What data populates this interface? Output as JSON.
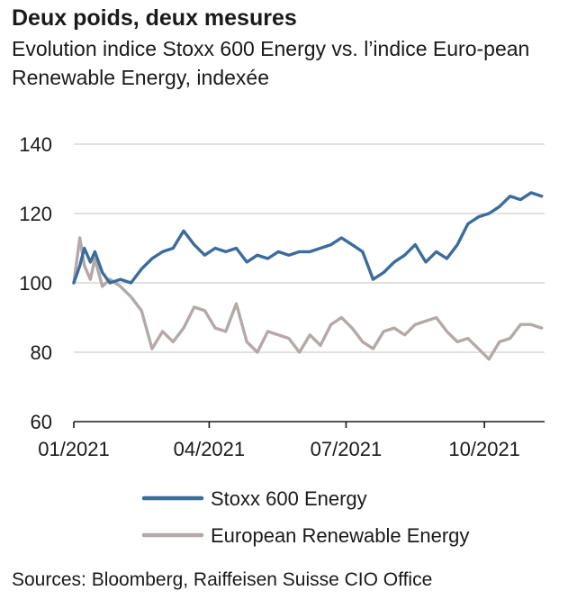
{
  "title": "Deux poids, deux mesures",
  "subtitle": "Evolution indice Stoxx 600 Energy vs. l’indice Euro-pean Renewable Energy, indexée",
  "source": "Sources: Bloomberg, Raiffeisen Suisse CIO Office",
  "colors": {
    "series_energy": "#3c6c9c",
    "series_renewable": "#b3a9a8",
    "grid": "#cfcfcf",
    "axis": "#1a1a1a"
  },
  "chart_data": {
    "type": "line",
    "title": "Deux poids, deux mesures",
    "subtitle": "Evolution indice Stoxx 600 Energy vs. l’indice European Renewable Energy, indexée",
    "xlabel": "",
    "ylabel": "",
    "ylim": [
      60,
      140
    ],
    "yticks": [
      60,
      80,
      100,
      120,
      140
    ],
    "xlim": [
      "2021-01-01",
      "2021-11-10"
    ],
    "xticks": [
      {
        "label": "01/2021",
        "date": "2021-01-01"
      },
      {
        "label": "04/2021",
        "date": "2021-04-01"
      },
      {
        "label": "07/2021",
        "date": "2021-07-01"
      },
      {
        "label": "10/2021",
        "date": "2021-10-01"
      }
    ],
    "grid": true,
    "legend_position": "bottom",
    "series": [
      {
        "name": "Stoxx 600 Energy",
        "color": "#3c6c9c",
        "x": [
          "2021-01-01",
          "2021-01-05",
          "2021-01-08",
          "2021-01-12",
          "2021-01-15",
          "2021-01-20",
          "2021-01-25",
          "2021-02-01",
          "2021-02-08",
          "2021-02-15",
          "2021-02-22",
          "2021-03-01",
          "2021-03-08",
          "2021-03-15",
          "2021-03-22",
          "2021-03-29",
          "2021-04-05",
          "2021-04-12",
          "2021-04-19",
          "2021-04-26",
          "2021-05-03",
          "2021-05-10",
          "2021-05-17",
          "2021-05-24",
          "2021-05-31",
          "2021-06-07",
          "2021-06-14",
          "2021-06-21",
          "2021-06-28",
          "2021-07-05",
          "2021-07-12",
          "2021-07-19",
          "2021-07-26",
          "2021-08-02",
          "2021-08-09",
          "2021-08-16",
          "2021-08-23",
          "2021-08-30",
          "2021-09-06",
          "2021-09-13",
          "2021-09-20",
          "2021-09-27",
          "2021-10-04",
          "2021-10-11",
          "2021-10-18",
          "2021-10-25",
          "2021-11-01",
          "2021-11-08"
        ],
        "values": [
          100,
          105,
          110,
          106,
          109,
          103,
          100,
          101,
          100,
          104,
          107,
          109,
          110,
          115,
          111,
          108,
          110,
          109,
          110,
          106,
          108,
          107,
          109,
          108,
          109,
          109,
          110,
          111,
          113,
          111,
          109,
          101,
          103,
          106,
          108,
          111,
          106,
          109,
          107,
          111,
          117,
          119,
          120,
          122,
          125,
          124,
          126,
          125
        ]
      },
      {
        "name": "European Renewable Energy",
        "color": "#b3a9a8",
        "x": [
          "2021-01-01",
          "2021-01-05",
          "2021-01-08",
          "2021-01-12",
          "2021-01-15",
          "2021-01-20",
          "2021-01-25",
          "2021-02-01",
          "2021-02-08",
          "2021-02-15",
          "2021-02-22",
          "2021-03-01",
          "2021-03-08",
          "2021-03-15",
          "2021-03-22",
          "2021-03-29",
          "2021-04-05",
          "2021-04-12",
          "2021-04-19",
          "2021-04-26",
          "2021-05-03",
          "2021-05-10",
          "2021-05-17",
          "2021-05-24",
          "2021-05-31",
          "2021-06-07",
          "2021-06-14",
          "2021-06-21",
          "2021-06-28",
          "2021-07-05",
          "2021-07-12",
          "2021-07-19",
          "2021-07-26",
          "2021-08-02",
          "2021-08-09",
          "2021-08-16",
          "2021-08-23",
          "2021-08-30",
          "2021-09-06",
          "2021-09-13",
          "2021-09-20",
          "2021-09-27",
          "2021-10-04",
          "2021-10-11",
          "2021-10-18",
          "2021-10-25",
          "2021-11-01",
          "2021-11-08"
        ],
        "values": [
          100,
          113,
          105,
          101,
          107,
          99,
          101,
          99,
          96,
          92,
          81,
          86,
          83,
          87,
          93,
          92,
          87,
          86,
          94,
          83,
          80,
          86,
          85,
          84,
          80,
          85,
          82,
          88,
          90,
          87,
          83,
          81,
          86,
          87,
          85,
          88,
          89,
          90,
          86,
          83,
          84,
          81,
          78,
          83,
          84,
          88,
          88,
          87
        ]
      }
    ]
  }
}
